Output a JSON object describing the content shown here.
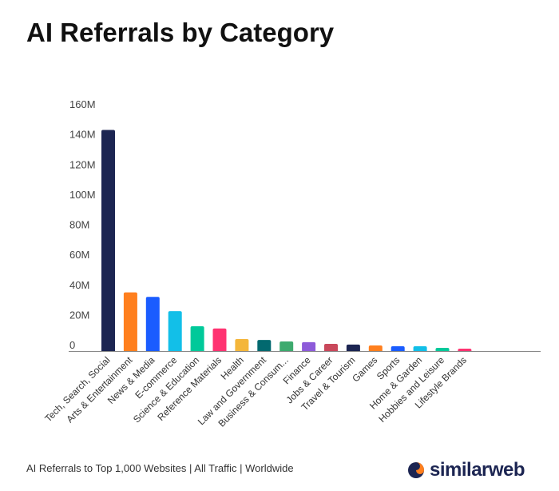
{
  "title": "AI Referrals by Category",
  "footer": "AI Referrals to Top 1,000 Websites | All Traffic | Worldwide",
  "brand": "similarweb",
  "brand_colors": {
    "dark": "#1c2552",
    "orange": "#ff7f1e"
  },
  "chart_data": {
    "type": "bar",
    "title": "AI Referrals by Category",
    "xlabel": "",
    "ylabel": "",
    "ylim": [
      0,
      160
    ],
    "yunit": "M",
    "yticks": [
      "0",
      "20M",
      "40M",
      "60M",
      "80M",
      "100M",
      "120M",
      "140M",
      "160M"
    ],
    "grid": false,
    "categories": [
      "Tech, Search, Social",
      "Arts & Entertainment",
      "News & Media",
      "E-commerce",
      "Science & Education",
      "Reference Materials",
      "Health",
      "Law and Government",
      "Business & Consum...",
      "Finance",
      "Jobs & Career",
      "Travel & Tourism",
      "Games",
      "Sports",
      "Home & Garden",
      "Hobbies and Leisure",
      "Lifestyle Brands"
    ],
    "values": [
      147,
      39,
      36,
      26.5,
      16.5,
      15,
      8,
      7.4,
      6.4,
      5.9,
      4.8,
      4.3,
      3.7,
      3.2,
      3.2,
      2.1,
      1.6
    ],
    "colors": [
      "#1c2552",
      "#ff7f1e",
      "#1a5cff",
      "#12bfe8",
      "#00c99a",
      "#ff3371",
      "#f4b63a",
      "#02696f",
      "#3daa6e",
      "#8d5bd9",
      "#c9485b",
      "#1c2552",
      "#ff7f1e",
      "#1a5cff",
      "#12bfe8",
      "#00c99a",
      "#ff3371"
    ]
  }
}
